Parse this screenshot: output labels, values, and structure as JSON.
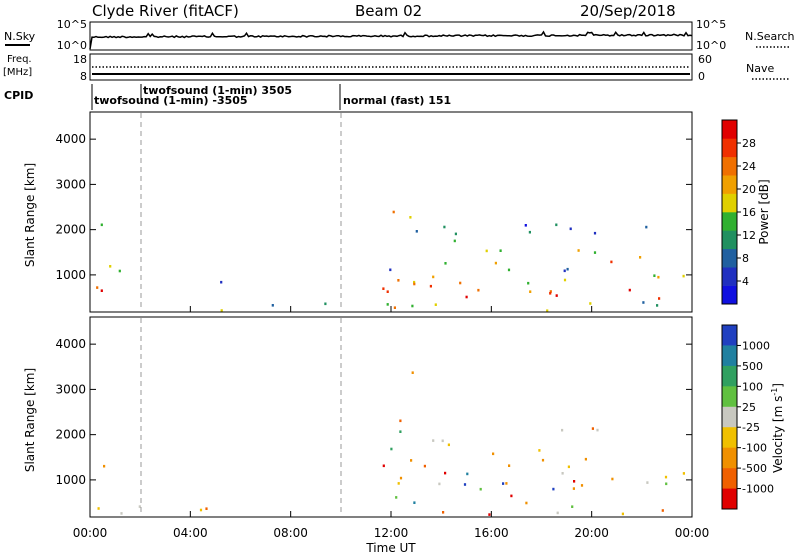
{
  "header": {
    "title": "Clyde River (fitACF)",
    "beam": "Beam 02",
    "date": "20/Sep/2018"
  },
  "nsky_panel": {
    "left_label": "N.Sky",
    "left_ticks": [
      "10^5",
      "10^0"
    ],
    "right_label": "N.Search",
    "right_ticks": [
      "10^5",
      "10^0"
    ]
  },
  "freq_panel": {
    "left_label_1": "Freq.",
    "left_label_2": "[MHz]",
    "left_ticks": [
      "18",
      "8"
    ],
    "right_label": "Nave",
    "right_ticks": [
      "60",
      "0"
    ]
  },
  "cpid": {
    "label": "CPID",
    "modes": [
      {
        "text": "twofsound (1-min) 3505",
        "start_hour": 2.0
      },
      {
        "text": "twofsound (1-min) -3505",
        "start_hour": 0.0
      },
      {
        "text": "normal (fast) 151",
        "start_hour": 10.0
      }
    ]
  },
  "chart_data": [
    {
      "type": "heatmap",
      "name": "power",
      "ylabel": "Slant Range [km]",
      "ylim": [
        180,
        4600
      ],
      "yticks": [
        "1000",
        "2000",
        "3000",
        "4000"
      ],
      "colorbar": {
        "label": "Power [dB]",
        "ticks": [
          "4",
          "8",
          "12",
          "16",
          "20",
          "24",
          "28"
        ],
        "colors": [
          "#1010e0",
          "#2030c0",
          "#2060a0",
          "#209060",
          "#30b030",
          "#e0d000",
          "#f0a000",
          "#f07000",
          "#f03000",
          "#e00000"
        ]
      },
      "scatter_bands": [
        {
          "t0": 0.0,
          "t1": 1.2,
          "r0": 300,
          "r1": 1600,
          "level": 0.7
        },
        {
          "t0": 0.0,
          "t1": 1.0,
          "r0": 1600,
          "r1": 2200,
          "level": 0.4
        },
        {
          "t0": 1.0,
          "t1": 9.5,
          "r0": 200,
          "r1": 500,
          "level": 0.3
        },
        {
          "t0": 2.0,
          "t1": 5.5,
          "r0": 500,
          "r1": 900,
          "level": 0.2
        },
        {
          "t0": 11.5,
          "t1": 22.5,
          "r0": 1200,
          "r1": 2200,
          "level": 0.5
        },
        {
          "t0": 11.5,
          "t1": 24.0,
          "r0": 500,
          "r1": 1200,
          "level": 0.85
        },
        {
          "t0": 11.5,
          "t1": 24.0,
          "r0": 200,
          "r1": 500,
          "level": 0.6
        },
        {
          "t0": 12.0,
          "t1": 13.0,
          "r0": 2300,
          "r1": 3700,
          "level": 0.5
        }
      ]
    },
    {
      "type": "heatmap",
      "name": "velocity",
      "xlabel": "Time UT",
      "ylabel": "Slant Range [km]",
      "ylim": [
        180,
        4600
      ],
      "yticks": [
        "1000",
        "2000",
        "3000",
        "4000"
      ],
      "xlim": [
        0,
        24
      ],
      "xticks": [
        "00:00",
        "04:00",
        "08:00",
        "12:00",
        "16:00",
        "20:00",
        "00:00"
      ],
      "colorbar": {
        "label": "Velocity [m s^-1]",
        "ticks": [
          "1000",
          "500",
          "100",
          "25",
          "-25",
          "-100",
          "-500",
          "-1000"
        ],
        "colors": [
          "#2040c0",
          "#2080a0",
          "#30a060",
          "#60c040",
          "#c8c8c0",
          "#f0c000",
          "#f09000",
          "#f06000",
          "#e00000"
        ]
      },
      "scatter_bands": [
        {
          "t0": 0.0,
          "t1": 1.2,
          "r0": 300,
          "r1": 1700,
          "level": 0.4
        },
        {
          "t0": 1.0,
          "t1": 9.5,
          "r0": 200,
          "r1": 500,
          "level": 0.5
        },
        {
          "t0": 11.5,
          "t1": 22.5,
          "r0": 1300,
          "r1": 2200,
          "level": 0.5
        },
        {
          "t0": 11.5,
          "t1": 24.0,
          "r0": 500,
          "r1": 1200,
          "level": 0.8
        },
        {
          "t0": 11.5,
          "t1": 24.0,
          "r0": 200,
          "r1": 500,
          "level": 0.5
        },
        {
          "t0": 12.0,
          "t1": 13.0,
          "r0": 2300,
          "r1": 3500,
          "level": 0.5
        }
      ]
    }
  ]
}
